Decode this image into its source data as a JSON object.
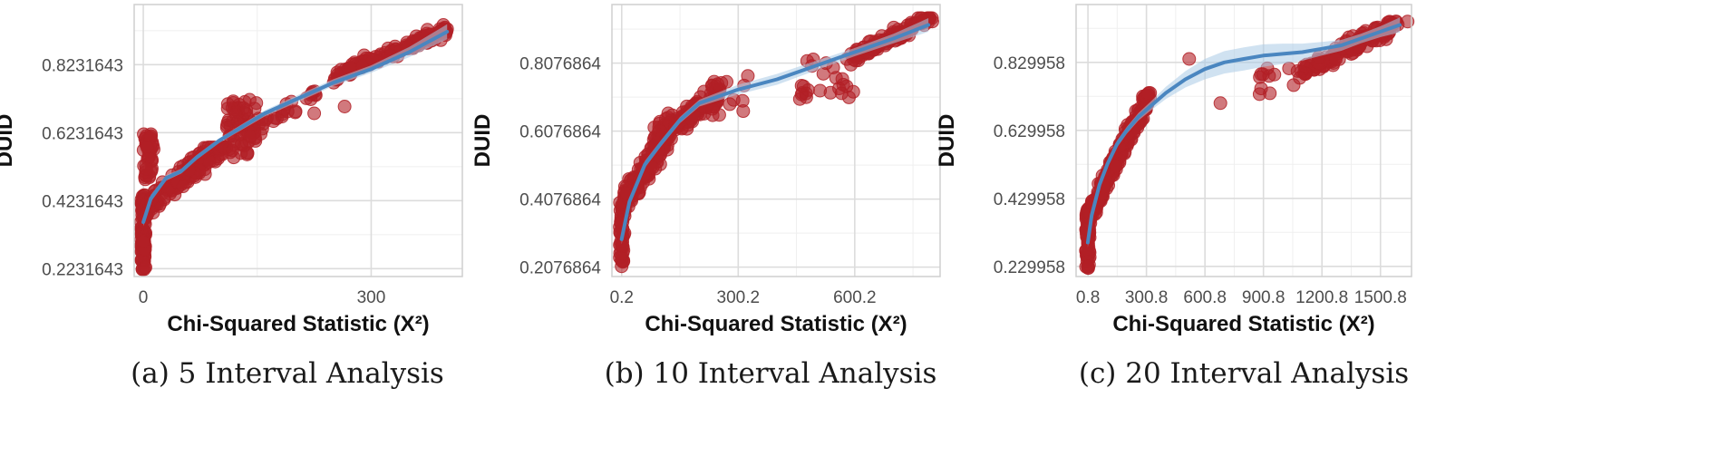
{
  "colors": {
    "points": "#b22026",
    "smooth": "#4a86c0",
    "band": "#a9cbe6",
    "grid_major": "#dcdcdc",
    "grid_minor": "#efefef",
    "frame": "#cfcfcf",
    "tick_text": "#4d4d4d",
    "label_text": "#111111"
  },
  "chart_data": [
    {
      "type": "scatter",
      "title": "(a) 5 Interval Analysis",
      "xlabel": "Chi-Squared Statistic (X²)",
      "ylabel": "DUID",
      "xlim": [
        -12,
        420
      ],
      "ylim": [
        0.2,
        1.0
      ],
      "xticks": [
        {
          "value": 0,
          "label": "0"
        },
        {
          "value": 300,
          "label": "300"
        }
      ],
      "yticks": [
        {
          "value": 0.2231643,
          "label": "0.2231643"
        },
        {
          "value": 0.4231643,
          "label": "0.4231643"
        },
        {
          "value": 0.6231643,
          "label": "0.6231643"
        },
        {
          "value": 0.8231643,
          "label": "0.8231643"
        }
      ],
      "xminor": [
        150
      ],
      "yminor": [
        0.3231643,
        0.5231643,
        0.7231643,
        0.9231643
      ],
      "smooth": {
        "x": [
          0,
          10,
          30,
          50,
          70,
          100,
          130,
          160,
          200,
          250,
          300,
          350,
          400
        ],
        "y": [
          0.36,
          0.43,
          0.49,
          0.51,
          0.55,
          0.6,
          0.64,
          0.68,
          0.72,
          0.77,
          0.81,
          0.86,
          0.92
        ],
        "se": [
          0.012,
          0.01,
          0.008,
          0.007,
          0.007,
          0.007,
          0.008,
          0.009,
          0.01,
          0.01,
          0.011,
          0.015,
          0.022
        ]
      },
      "clusters": [
        {
          "x": [
            -3,
            3
          ],
          "y": [
            0.22,
            0.44
          ],
          "n": 110
        },
        {
          "x": [
            0,
            14
          ],
          "y": [
            0.48,
            0.62
          ],
          "n": 45
        },
        {
          "x": [
            3,
            110
          ],
          "y": [
            0.36,
            0.58
          ],
          "n": 160,
          "trend": 0.0019,
          "base": 0.4,
          "spread": 0.05
        },
        {
          "x": [
            110,
            150
          ],
          "y": [
            0.55,
            0.72
          ],
          "n": 70
        },
        {
          "x": [
            150,
            230
          ],
          "y": [
            0.62,
            0.76
          ],
          "n": 28,
          "trend": 0.0013,
          "base": 0.64,
          "spread": 0.04
        },
        {
          "x": [
            250,
            400
          ],
          "y": [
            0.7,
            0.94
          ],
          "n": 130,
          "trend": 0.0009,
          "base": 0.79,
          "spread": 0.03
        }
      ],
      "captured_points": [
        {
          "x": 5,
          "y": 0.58
        },
        {
          "x": 140,
          "y": 0.72
        },
        {
          "x": 225,
          "y": 0.68
        },
        {
          "x": 265,
          "y": 0.7
        },
        {
          "x": 395,
          "y": 0.94
        }
      ]
    },
    {
      "type": "scatter",
      "title": "(b) 10 Interval Analysis",
      "xlabel": "Chi-Squared Statistic (X²)",
      "ylabel": "DUID",
      "xlim": [
        -25,
        820
      ],
      "ylim": [
        0.18,
        0.98
      ],
      "xticks": [
        {
          "value": 0.2,
          "label": "0.2"
        },
        {
          "value": 300.2,
          "label": "300.2"
        },
        {
          "value": 600.2,
          "label": "600.2"
        }
      ],
      "yticks": [
        {
          "value": 0.2076864,
          "label": "0.2076864"
        },
        {
          "value": 0.4076864,
          "label": "0.4076864"
        },
        {
          "value": 0.6076864,
          "label": "0.6076864"
        },
        {
          "value": 0.8076864,
          "label": "0.8076864"
        }
      ],
      "xminor": [
        150.2,
        450.2,
        750.2
      ],
      "yminor": [
        0.3076864,
        0.5076864,
        0.7076864,
        0.9076864
      ],
      "smooth": {
        "x": [
          0,
          20,
          60,
          100,
          150,
          200,
          250,
          300,
          400,
          500,
          600,
          700,
          790
        ],
        "y": [
          0.29,
          0.4,
          0.51,
          0.57,
          0.64,
          0.69,
          0.71,
          0.73,
          0.76,
          0.8,
          0.84,
          0.88,
          0.92
        ],
        "se": [
          0.015,
          0.012,
          0.01,
          0.009,
          0.009,
          0.01,
          0.012,
          0.014,
          0.016,
          0.014,
          0.012,
          0.014,
          0.02
        ]
      },
      "clusters": [
        {
          "x": [
            -5,
            8
          ],
          "y": [
            0.22,
            0.4
          ],
          "n": 50
        },
        {
          "x": [
            5,
            120
          ],
          "y": [
            0.38,
            0.62
          ],
          "n": 170,
          "trend": 0.0017,
          "base": 0.4,
          "spread": 0.06
        },
        {
          "x": [
            80,
            250
          ],
          "y": [
            0.52,
            0.74
          ],
          "n": 130,
          "trend": 0.0008,
          "base": 0.58,
          "spread": 0.05
        },
        {
          "x": [
            230,
            320
          ],
          "y": [
            0.64,
            0.76
          ],
          "n": 18
        },
        {
          "x": [
            450,
            600
          ],
          "y": [
            0.7,
            0.82
          ],
          "n": 25
        },
        {
          "x": [
            590,
            800
          ],
          "y": [
            0.78,
            0.94
          ],
          "n": 110,
          "trend": 0.0006,
          "base": 0.82,
          "spread": 0.03
        }
      ],
      "captured_points": [
        {
          "x": 0,
          "y": 0.21
        },
        {
          "x": 325,
          "y": 0.77
        },
        {
          "x": 120,
          "y": 0.66
        },
        {
          "x": 800,
          "y": 0.93
        }
      ]
    },
    {
      "type": "scatter",
      "title": "(c) 20 Interval Analysis",
      "xlabel": "Chi-Squared Statistic (X²)",
      "ylabel": "DUID",
      "xlim": [
        -60,
        1660
      ],
      "ylim": [
        0.2,
        1.0
      ],
      "xticks": [
        {
          "value": 0.8,
          "label": "0.8"
        },
        {
          "value": 300.8,
          "label": "300.8"
        },
        {
          "value": 600.8,
          "label": "600.8"
        },
        {
          "value": 900.8,
          "label": "900.8"
        },
        {
          "value": 1200.8,
          "label": "1200.8"
        },
        {
          "value": 1500.8,
          "label": "1500.8"
        }
      ],
      "yticks": [
        {
          "value": 0.229958,
          "label": "0.229958"
        },
        {
          "value": 0.429958,
          "label": "0.429958"
        },
        {
          "value": 0.629958,
          "label": "0.629958"
        },
        {
          "value": 0.829958,
          "label": "0.829958"
        }
      ],
      "xminor": [
        150.8,
        450.8,
        750.8,
        1050.8,
        1350.8
      ],
      "yminor": [
        0.329958,
        0.529958,
        0.729958,
        0.929958
      ],
      "smooth": {
        "x": [
          0,
          20,
          60,
          100,
          150,
          200,
          260,
          320,
          400,
          500,
          600,
          700,
          800,
          900,
          1000,
          1100,
          1200,
          1300,
          1400,
          1500,
          1600
        ],
        "y": [
          0.3,
          0.38,
          0.47,
          0.53,
          0.59,
          0.63,
          0.67,
          0.7,
          0.74,
          0.78,
          0.81,
          0.83,
          0.84,
          0.85,
          0.855,
          0.86,
          0.87,
          0.88,
          0.9,
          0.92,
          0.94
        ],
        "se": [
          0.015,
          0.012,
          0.01,
          0.01,
          0.01,
          0.01,
          0.011,
          0.013,
          0.018,
          0.024,
          0.03,
          0.033,
          0.034,
          0.033,
          0.03,
          0.025,
          0.02,
          0.016,
          0.014,
          0.016,
          0.022
        ]
      },
      "clusters": [
        {
          "x": [
            -10,
            10
          ],
          "y": [
            0.22,
            0.4
          ],
          "n": 60
        },
        {
          "x": [
            5,
            320
          ],
          "y": [
            0.32,
            0.74
          ],
          "n": 260,
          "trend": 0.00115,
          "base": 0.38,
          "spread": 0.05
        },
        {
          "x": [
            1100,
            1600
          ],
          "y": [
            0.74,
            0.95
          ],
          "n": 140,
          "trend": 0.0003,
          "base": 0.8,
          "spread": 0.04
        },
        {
          "x": [
            880,
            1100
          ],
          "y": [
            0.73,
            0.82
          ],
          "n": 14
        }
      ],
      "captured_points": [
        {
          "x": 520,
          "y": 0.84
        },
        {
          "x": 680,
          "y": 0.71
        },
        {
          "x": 1640,
          "y": 0.95
        },
        {
          "x": 0,
          "y": 0.23
        }
      ]
    }
  ]
}
